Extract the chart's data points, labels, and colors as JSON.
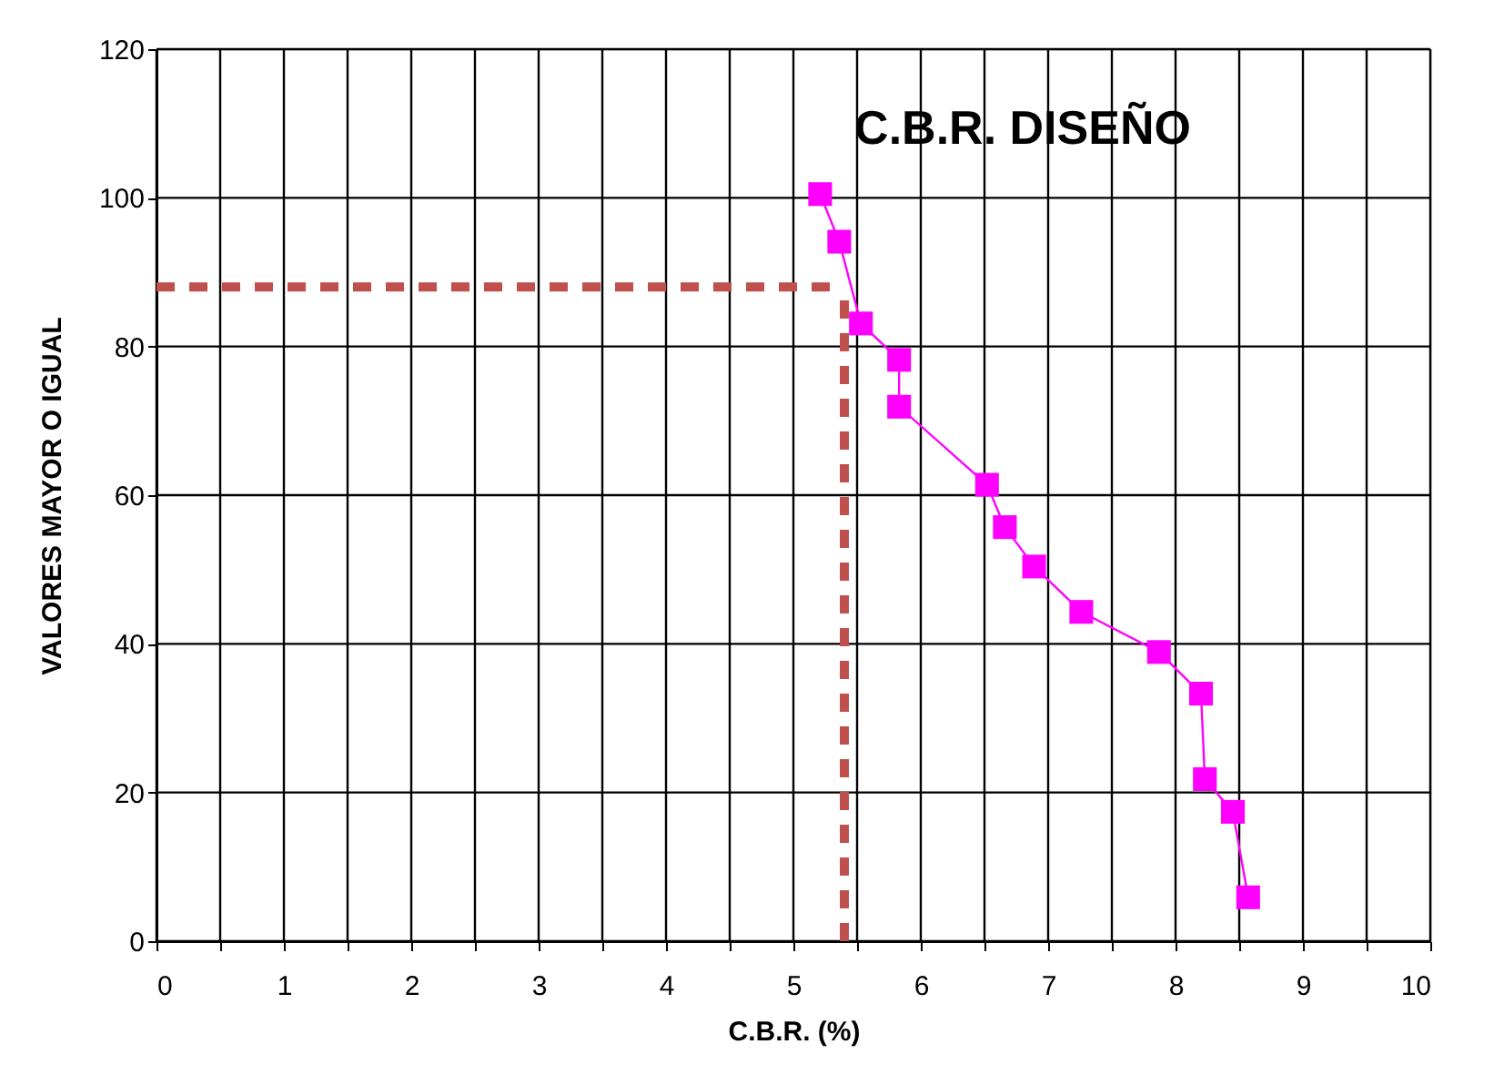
{
  "chart_data": {
    "type": "line",
    "title": "C.B.R. DISEÑO",
    "xlabel": "C.B.R. (%)",
    "ylabel": "VALORES MAYOR O IGUAL",
    "x": [
      5.21,
      5.36,
      5.53,
      5.83,
      5.83,
      6.52,
      6.66,
      6.89,
      7.26,
      7.87,
      8.2,
      8.23,
      8.45,
      8.57
    ],
    "series": [
      {
        "color": "#ff00ff",
        "values": [
          100.5,
          94.1,
          83.1,
          78.2,
          71.9,
          61.4,
          55.7,
          50.4,
          44.3,
          38.9,
          33.3,
          21.8,
          17.4,
          5.9
        ]
      }
    ],
    "xlim": [
      0,
      10
    ],
    "ylim": [
      0,
      120
    ],
    "xticks": [
      0,
      {
        "value": 0.5,
        "label": null
      },
      1,
      {
        "value": 1.5,
        "label": null
      },
      2,
      {
        "value": 2.5,
        "label": null
      },
      3,
      {
        "value": 3.5,
        "label": null
      },
      4,
      {
        "value": 4.5,
        "label": null
      },
      5,
      {
        "value": 5.5,
        "label": null
      },
      6,
      {
        "value": 6.5,
        "label": null
      },
      7,
      {
        "value": 7.5,
        "label": null
      },
      8,
      {
        "value": 8.5,
        "label": null
      },
      9,
      {
        "value": 9.5,
        "label": null
      },
      10
    ],
    "yticks": [
      0,
      20,
      40,
      60,
      80,
      100,
      120
    ],
    "ref_lines": [
      {
        "axis": "y",
        "value": 88,
        "color": "#c0504d",
        "line_style": "dashed"
      },
      {
        "axis": "x",
        "value": 5.4,
        "color": "#c0504d",
        "line_style": "dashed"
      }
    ],
    "grid": true,
    "marker": "square",
    "line_style": "solid"
  }
}
